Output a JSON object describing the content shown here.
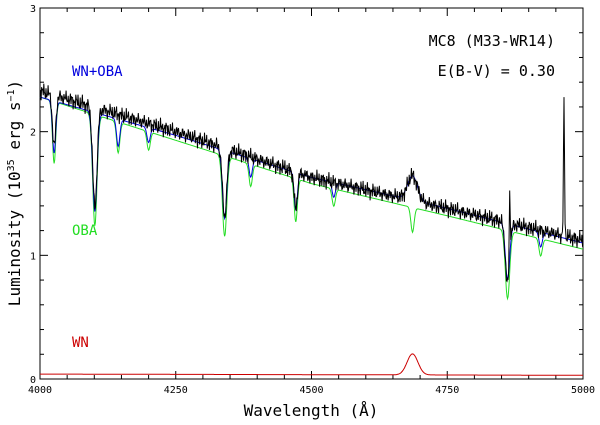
{
  "chart_data": {
    "type": "line",
    "xlabel": "Wavelength (Å)",
    "ylabel": {
      "prefix": "Luminosity (10",
      "exp": "35",
      "unit": " erg s",
      "unit_exp": "−1",
      "suffix": ")"
    },
    "xlim": [
      4000,
      5000
    ],
    "ylim": [
      0,
      3
    ],
    "xticks": [
      4000,
      4250,
      4500,
      4750,
      5000
    ],
    "yticks": [
      0,
      1,
      2,
      3
    ],
    "annotations": [
      "MC8 (M33-WR14)",
      "E(B-V) = 0.30"
    ],
    "series": [
      {
        "name": "WN+OBA",
        "color": "#0000dd",
        "continuum": [
          [
            4000,
            2.28
          ],
          [
            4250,
            1.97
          ],
          [
            4500,
            1.63
          ],
          [
            4750,
            1.38
          ],
          [
            5000,
            1.1
          ]
        ],
        "absorption": [
          [
            4026,
            0.42,
            3
          ],
          [
            4101,
            0.8,
            4
          ],
          [
            4144,
            0.22,
            3
          ],
          [
            4200,
            0.12,
            3
          ],
          [
            4340,
            0.55,
            4
          ],
          [
            4388,
            0.15,
            3
          ],
          [
            4471,
            0.3,
            3
          ],
          [
            4541,
            0.12,
            3
          ],
          [
            4861,
            0.45,
            4
          ],
          [
            4922,
            0.12,
            3
          ]
        ],
        "emission": [
          [
            4686,
            0.2,
            9
          ]
        ]
      },
      {
        "name": "OBA",
        "color": "#22dd22",
        "continuum": [
          [
            4000,
            2.28
          ],
          [
            4250,
            1.93
          ],
          [
            4500,
            1.58
          ],
          [
            4750,
            1.32
          ],
          [
            5000,
            1.05
          ]
        ],
        "absorption": [
          [
            4026,
            0.5,
            3
          ],
          [
            4101,
            0.9,
            4
          ],
          [
            4144,
            0.25,
            3
          ],
          [
            4200,
            0.15,
            3
          ],
          [
            4340,
            0.65,
            4
          ],
          [
            4388,
            0.18,
            3
          ],
          [
            4471,
            0.35,
            3
          ],
          [
            4541,
            0.14,
            3
          ],
          [
            4686,
            0.2,
            3
          ],
          [
            4861,
            0.55,
            4
          ],
          [
            4922,
            0.14,
            3
          ]
        ],
        "emission": []
      },
      {
        "name": "WN",
        "color": "#cc0000",
        "continuum": [
          [
            4000,
            0.04
          ],
          [
            5000,
            0.03
          ]
        ],
        "absorption": [],
        "emission": [
          [
            4686,
            0.17,
            10
          ]
        ]
      }
    ],
    "observed": {
      "color": "#000000",
      "continuum": [
        [
          4000,
          2.33
        ],
        [
          4250,
          2.0
        ],
        [
          4500,
          1.63
        ],
        [
          4750,
          1.38
        ],
        [
          5000,
          1.12
        ]
      ],
      "absorption": [
        [
          4026,
          0.42,
          3
        ],
        [
          4101,
          0.8,
          4
        ],
        [
          4340,
          0.55,
          4
        ],
        [
          4471,
          0.3,
          3
        ],
        [
          4861,
          0.5,
          4
        ]
      ],
      "emission": [
        [
          4686,
          0.2,
          9
        ],
        [
          4865,
          0.55,
          1
        ],
        [
          4965,
          1.1,
          1
        ]
      ]
    }
  }
}
